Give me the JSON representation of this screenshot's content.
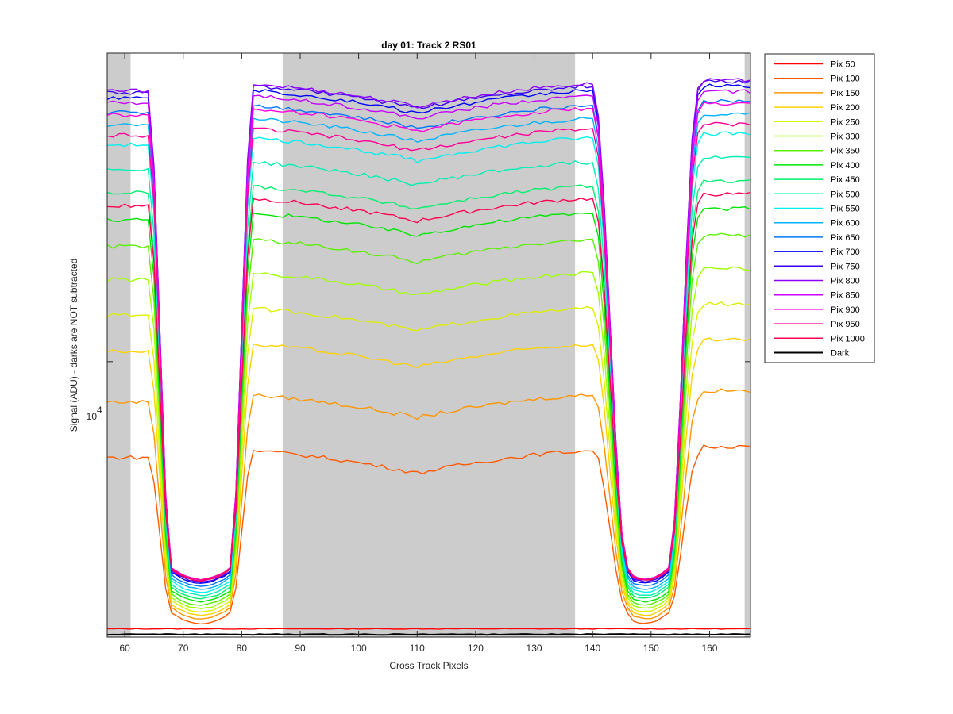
{
  "chart_data": {
    "type": "line",
    "title": "day 01: Track 2  RS01",
    "xlabel": "Cross Track Pixels",
    "ylabel": "Signal (ADU) - darks are NOT subtracted",
    "xlim": [
      57,
      167
    ],
    "y_scale": "log",
    "ylim": [
      2900,
      40000
    ],
    "xticks": [
      60,
      70,
      80,
      90,
      100,
      110,
      120,
      130,
      140,
      150,
      160
    ],
    "xtick_labels": [
      "60",
      "70",
      "80",
      "90",
      "100",
      "110",
      "120",
      "130",
      "140",
      "150",
      "160"
    ],
    "ytick_label_base": "10",
    "ytick_label_exp": "4",
    "ytick_value": 10000,
    "grid": false,
    "legend_position": "outside-top-right",
    "shaded_regions": [
      [
        57,
        61
      ],
      [
        87,
        137
      ],
      [
        166,
        167
      ]
    ],
    "shade_color": "#cccccc",
    "profile": {
      "left_plateau_x": [
        57,
        64
      ],
      "left_drop_x": [
        64,
        68
      ],
      "trough1_x": [
        68,
        78
      ],
      "middle_rise_x": [
        78,
        82
      ],
      "middle_plateau_x": [
        82,
        140
      ],
      "right_drop_x": [
        140,
        146
      ],
      "trough2_x": [
        146,
        153
      ],
      "right_rise_x": [
        153,
        158
      ],
      "right_plateau_x": [
        158,
        167
      ],
      "trough_min_x": [
        73,
        149
      ],
      "center_dip_x": 110,
      "dip_fraction_scale": 0.016
    },
    "series": [
      {
        "name": "Pix 50",
        "color": "#ff0000",
        "level": 3010,
        "trough": 3010,
        "flat": true
      },
      {
        "name": "Pix 100",
        "color": "#ff5a00",
        "level": 6700,
        "trough": 3080
      },
      {
        "name": "Pix 150",
        "color": "#ff9600",
        "level": 8600,
        "trough": 3150
      },
      {
        "name": "Pix 200",
        "color": "#ffd200",
        "level": 10800,
        "trough": 3200
      },
      {
        "name": "Pix 250",
        "color": "#dcf000",
        "level": 12700,
        "trough": 3250
      },
      {
        "name": "Pix 300",
        "color": "#a0ff00",
        "level": 14900,
        "trough": 3300
      },
      {
        "name": "Pix 350",
        "color": "#5af000",
        "level": 17300,
        "trough": 3350
      },
      {
        "name": "Pix 400",
        "color": "#00e600",
        "level": 19500,
        "trough": 3400
      },
      {
        "name": "Pix 450",
        "color": "#00f06e",
        "level": 22000,
        "trough": 3450
      },
      {
        "name": "Pix 500",
        "color": "#00f0b4",
        "level": 24500,
        "trough": 3500
      },
      {
        "name": "Pix 550",
        "color": "#00f0f0",
        "level": 27300,
        "trough": 3550
      },
      {
        "name": "Pix 600",
        "color": "#00b4ff",
        "level": 29800,
        "trough": 3600
      },
      {
        "name": "Pix 650",
        "color": "#0078ff",
        "level": 31600,
        "trough": 3650
      },
      {
        "name": "Pix 700",
        "color": "#0000ff",
        "level": 33800,
        "trough": 3700
      },
      {
        "name": "Pix 750",
        "color": "#3c00f0",
        "level": 34500,
        "trough": 3720
      },
      {
        "name": "Pix 800",
        "color": "#8c00ff",
        "level": 34800,
        "trough": 3740
      },
      {
        "name": "Pix 850",
        "color": "#c800ff",
        "level": 33000,
        "trough": 3760
      },
      {
        "name": "Pix 900",
        "color": "#ff00dc",
        "level": 31200,
        "trough": 3760
      },
      {
        "name": "Pix 950",
        "color": "#ff0096",
        "level": 28500,
        "trough": 3760
      },
      {
        "name": "Pix 1000",
        "color": "#ff0050",
        "level": 20800,
        "trough": 3740
      },
      {
        "name": "Dark",
        "color": "#000000",
        "level": 2935,
        "trough": 2935,
        "flat": true
      }
    ]
  }
}
